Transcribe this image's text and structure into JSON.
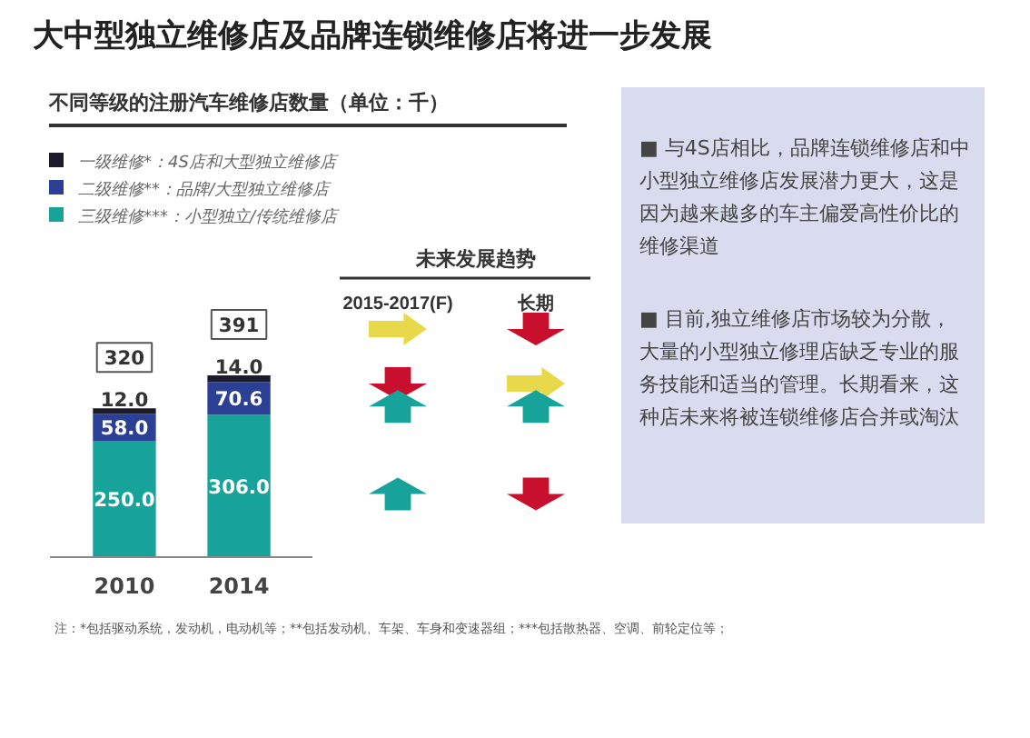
{
  "chart_data": {
    "type": "bar",
    "stacked": true,
    "title": "大中型独立维修店及品牌连锁维修店将进一步发展",
    "subtitle": "不同等级的注册汽车维修店数量（单位：千）",
    "categories": [
      "2010",
      "2014"
    ],
    "series": [
      {
        "name": "三级维修***：小型独立/传统维修店",
        "color": "#17a39a",
        "values": [
          250.0,
          306.0
        ],
        "value_labels": [
          "250.0",
          "306.0"
        ]
      },
      {
        "name": "二级维修**：品牌/大型独立维修店",
        "color": "#2b3f94",
        "values": [
          58.0,
          70.6
        ],
        "value_labels": [
          "58.0",
          "70.6"
        ]
      },
      {
        "name": "一级维修*：4S店和大型独立维修店",
        "color": "#1b1b2b",
        "values": [
          12.0,
          14.0
        ],
        "value_labels": [
          "12.0",
          "14.0"
        ]
      }
    ],
    "totals": [
      "320",
      "391"
    ],
    "legend": "top left",
    "grid": false,
    "annotations": [
      "未来发展趋势",
      "2015-2017(F)",
      "长期",
      "■ 与4S店相比，品牌连锁维修店和中小型独立维修店发展潜力更大，这是因为越来越多的车主偏爱高性价比的维修渠道",
      "■ 目前,独立维修店市场较为分散，大量的小型独立修理店缺乏专业的服务技能和适当的管理。长期看来，这种店未来将被连锁维修店合并或淘汰",
      "注：*包括驱动系统，发动机，电动机等；**包括发动机、车架、车身和变速器组；***包括散热器、空调、前轮定位等；"
    ]
  }
}
